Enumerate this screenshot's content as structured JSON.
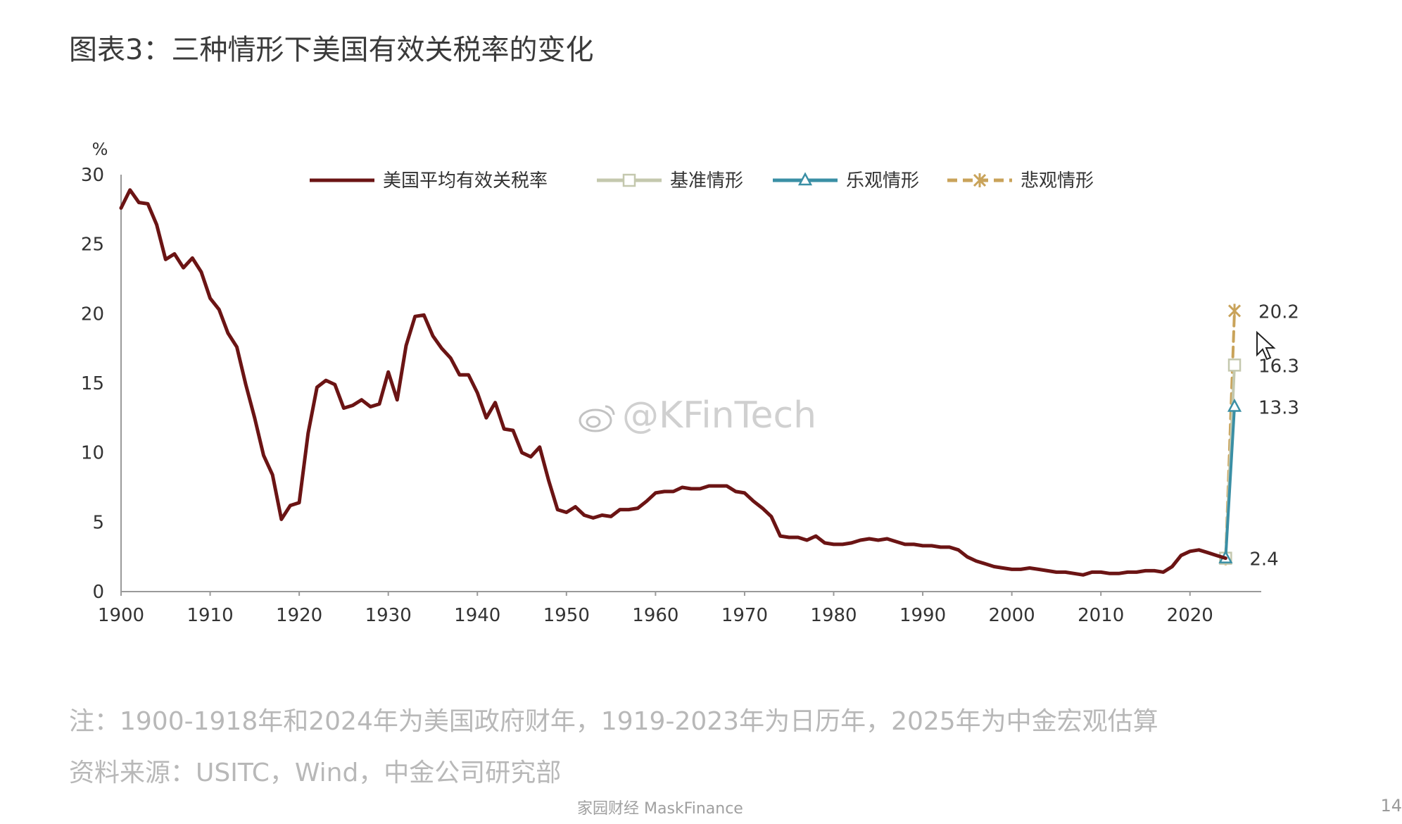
{
  "page": {
    "title": "图表3：三种情形下美国有效关税率的变化",
    "note": "注：1900-1918年和2024年为美国政府财年，1919-2023年为日历年，2025年为中金宏观估算",
    "source": "资料来源：USITC，Wind，中金公司研究部",
    "footer": "家园财经 MaskFinance",
    "page_number": "14",
    "watermark": "@KFinTech"
  },
  "chart_data": {
    "type": "line",
    "ylabel": "%",
    "xlim": [
      1900,
      2028
    ],
    "ylim": [
      0,
      30
    ],
    "xticks": [
      1900,
      1910,
      1920,
      1930,
      1940,
      1950,
      1960,
      1970,
      1980,
      1990,
      2000,
      2010,
      2020
    ],
    "yticks": [
      0,
      5,
      10,
      15,
      20,
      25,
      30
    ],
    "grid": false,
    "legend_position": "top",
    "series": [
      {
        "name": "美国平均有效关税率",
        "color": "#6b1414",
        "x": [
          1900,
          1901,
          1902,
          1903,
          1904,
          1905,
          1906,
          1907,
          1908,
          1909,
          1910,
          1911,
          1912,
          1913,
          1914,
          1915,
          1916,
          1917,
          1918,
          1919,
          1920,
          1921,
          1922,
          1923,
          1924,
          1925,
          1926,
          1927,
          1928,
          1929,
          1930,
          1931,
          1932,
          1933,
          1934,
          1935,
          1936,
          1937,
          1938,
          1939,
          1940,
          1941,
          1942,
          1943,
          1944,
          1945,
          1946,
          1947,
          1948,
          1949,
          1950,
          1951,
          1952,
          1953,
          1954,
          1955,
          1956,
          1957,
          1958,
          1959,
          1960,
          1961,
          1962,
          1963,
          1964,
          1965,
          1966,
          1967,
          1968,
          1969,
          1970,
          1971,
          1972,
          1973,
          1974,
          1975,
          1976,
          1977,
          1978,
          1979,
          1980,
          1981,
          1982,
          1983,
          1984,
          1985,
          1986,
          1987,
          1988,
          1989,
          1990,
          1991,
          1992,
          1993,
          1994,
          1995,
          1996,
          1997,
          1998,
          1999,
          2000,
          2001,
          2002,
          2003,
          2004,
          2005,
          2006,
          2007,
          2008,
          2009,
          2010,
          2011,
          2012,
          2013,
          2014,
          2015,
          2016,
          2017,
          2018,
          2019,
          2020,
          2021,
          2022,
          2023,
          2024
        ],
        "values": [
          27.6,
          28.9,
          28.0,
          27.9,
          26.4,
          23.9,
          24.3,
          23.3,
          24.0,
          23.0,
          21.1,
          20.3,
          18.6,
          17.6,
          14.9,
          12.5,
          9.8,
          8.4,
          5.2,
          6.2,
          6.4,
          11.4,
          14.7,
          15.2,
          14.9,
          13.2,
          13.4,
          13.8,
          13.3,
          13.5,
          15.8,
          13.8,
          17.7,
          19.8,
          19.9,
          18.4,
          17.5,
          16.8,
          15.6,
          15.6,
          14.3,
          12.5,
          13.6,
          11.7,
          11.6,
          10.0,
          9.7,
          10.4,
          8.0,
          5.9,
          5.7,
          6.1,
          5.5,
          5.3,
          5.5,
          5.4,
          5.9,
          5.9,
          6.0,
          6.5,
          7.1,
          7.2,
          7.2,
          7.5,
          7.4,
          7.4,
          7.6,
          7.6,
          7.6,
          7.2,
          7.1,
          6.5,
          6.0,
          5.4,
          4.0,
          3.9,
          3.9,
          3.7,
          4.0,
          3.5,
          3.4,
          3.4,
          3.5,
          3.7,
          3.8,
          3.7,
          3.8,
          3.6,
          3.4,
          3.4,
          3.3,
          3.3,
          3.2,
          3.2,
          3.0,
          2.5,
          2.2,
          2.0,
          1.8,
          1.7,
          1.6,
          1.6,
          1.7,
          1.6,
          1.5,
          1.4,
          1.4,
          1.3,
          1.2,
          1.4,
          1.4,
          1.3,
          1.3,
          1.4,
          1.4,
          1.5,
          1.5,
          1.4,
          1.8,
          2.6,
          2.9,
          3.0,
          2.8,
          2.6,
          2.4
        ]
      },
      {
        "name": "基准情形",
        "color": "#c4c8ae",
        "marker": "square",
        "x": [
          2024,
          2025
        ],
        "values": [
          2.4,
          16.3
        ]
      },
      {
        "name": "乐观情形",
        "color": "#3a8fa5",
        "marker": "triangle",
        "x": [
          2024,
          2025
        ],
        "values": [
          2.4,
          13.3
        ]
      },
      {
        "name": "悲观情形",
        "color": "#c9a35a",
        "marker": "star",
        "dashed": true,
        "x": [
          2024,
          2025
        ],
        "values": [
          2.4,
          20.2
        ]
      }
    ],
    "annotations": [
      {
        "x": 2025,
        "y": 20.2,
        "text": "20.2"
      },
      {
        "x": 2025,
        "y": 16.3,
        "text": "16.3"
      },
      {
        "x": 2025,
        "y": 13.3,
        "text": "13.3"
      },
      {
        "x": 2024,
        "y": 2.4,
        "text": "2.4"
      }
    ]
  }
}
